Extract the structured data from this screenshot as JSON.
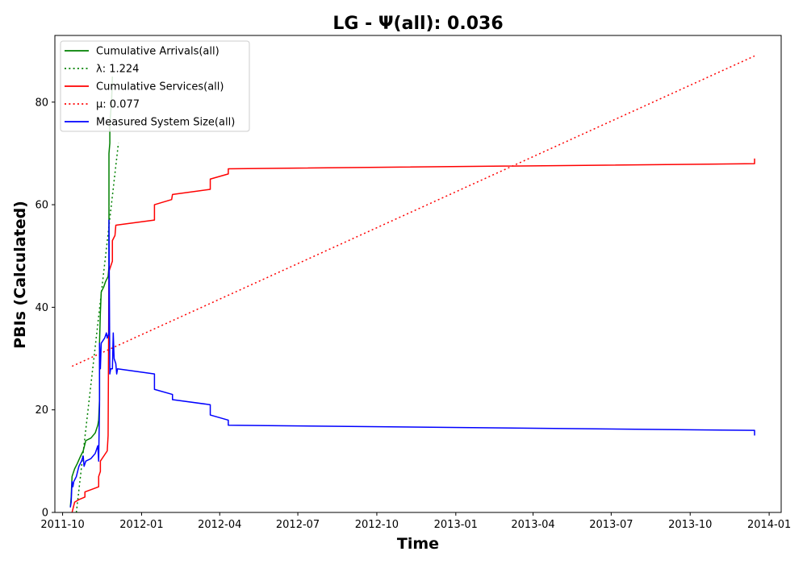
{
  "chart_data": {
    "type": "line",
    "title": "LG -  Ψ(all): 0.036",
    "xlabel": "Time",
    "ylabel": "PBIs (Calculated)",
    "xlim": [
      "2011-09-22",
      "2014-01-15"
    ],
    "ylim": [
      0,
      93
    ],
    "x_ticks": [
      "2011-10",
      "2012-01",
      "2012-04",
      "2012-07",
      "2012-10",
      "2013-01",
      "2013-04",
      "2013-07",
      "2013-10",
      "2014-01"
    ],
    "y_ticks": [
      0,
      20,
      40,
      60,
      80
    ],
    "grid": false,
    "legend_position": "top-left",
    "series": [
      {
        "name": "Cumulative Arrivals(all)",
        "color": "#008000",
        "style": "solid",
        "points": [
          [
            "2011-10-10",
            1
          ],
          [
            "2011-10-11",
            3
          ],
          [
            "2011-10-12",
            7
          ],
          [
            "2011-10-15",
            8.5
          ],
          [
            "2011-10-18",
            9.5
          ],
          [
            "2011-10-22",
            11
          ],
          [
            "2011-10-25",
            12
          ],
          [
            "2011-10-28",
            14
          ],
          [
            "2011-11-03",
            14.5
          ],
          [
            "2011-11-08",
            15.5
          ],
          [
            "2011-11-11",
            17
          ],
          [
            "2011-11-12",
            18
          ],
          [
            "2011-11-13",
            22
          ],
          [
            "2011-11-13",
            33
          ],
          [
            "2011-11-14",
            39
          ],
          [
            "2011-11-15",
            43
          ],
          [
            "2011-11-18",
            44
          ],
          [
            "2011-11-20",
            45
          ],
          [
            "2011-11-23",
            46
          ],
          [
            "2011-11-24",
            48
          ],
          [
            "2011-11-24",
            70
          ],
          [
            "2011-11-25",
            72
          ],
          [
            "2011-11-25",
            76
          ],
          [
            "2011-11-27",
            80
          ],
          [
            "2011-11-28",
            85
          ]
        ]
      },
      {
        "name": "λ: 1.224",
        "color": "#008000",
        "style": "dotted",
        "points": [
          [
            "2011-10-17",
            0
          ],
          [
            "2011-12-05",
            72
          ]
        ]
      },
      {
        "name": "Cumulative Services(all)",
        "color": "#ff0000",
        "style": "solid",
        "points": [
          [
            "2011-10-12",
            0
          ],
          [
            "2011-10-15",
            2
          ],
          [
            "2011-10-20",
            2.5
          ],
          [
            "2011-10-27",
            3
          ],
          [
            "2011-10-27",
            4
          ],
          [
            "2011-11-12",
            5
          ],
          [
            "2011-11-12",
            7
          ],
          [
            "2011-11-14",
            8
          ],
          [
            "2011-11-14",
            10
          ],
          [
            "2011-11-22",
            12
          ],
          [
            "2011-11-23",
            15
          ],
          [
            "2011-11-24",
            47
          ],
          [
            "2011-11-26",
            48
          ],
          [
            "2011-11-28",
            49
          ],
          [
            "2011-11-28",
            53
          ],
          [
            "2011-12-01",
            54
          ],
          [
            "2011-12-02",
            56
          ],
          [
            "2012-01-16",
            57
          ],
          [
            "2012-01-16",
            60
          ],
          [
            "2012-02-05",
            61
          ],
          [
            "2012-02-06",
            62
          ],
          [
            "2012-03-21",
            63
          ],
          [
            "2012-03-21",
            65
          ],
          [
            "2012-04-11",
            66
          ],
          [
            "2012-04-11",
            67
          ],
          [
            "2013-12-15",
            68
          ],
          [
            "2013-12-15",
            69
          ]
        ]
      },
      {
        "name": "μ: 0.077",
        "color": "#ff0000",
        "style": "dotted",
        "points": [
          [
            "2011-10-12",
            28.5
          ],
          [
            "2013-12-15",
            89
          ]
        ]
      },
      {
        "name": "Measured System Size(all)",
        "color": "#0000ff",
        "style": "solid",
        "points": [
          [
            "2011-10-10",
            1
          ],
          [
            "2011-10-11",
            2
          ],
          [
            "2011-10-12",
            6
          ],
          [
            "2011-10-13",
            5
          ],
          [
            "2011-10-14",
            6
          ],
          [
            "2011-10-17",
            7
          ],
          [
            "2011-10-20",
            9
          ],
          [
            "2011-10-23",
            10
          ],
          [
            "2011-10-25",
            11
          ],
          [
            "2011-10-26",
            9
          ],
          [
            "2011-10-28",
            10
          ],
          [
            "2011-11-03",
            10.5
          ],
          [
            "2011-11-08",
            11.5
          ],
          [
            "2011-11-11",
            13
          ],
          [
            "2011-11-12",
            10
          ],
          [
            "2011-11-13",
            21
          ],
          [
            "2011-11-13",
            33
          ],
          [
            "2011-11-14",
            28
          ],
          [
            "2011-11-15",
            33
          ],
          [
            "2011-11-19",
            34
          ],
          [
            "2011-11-21",
            35
          ],
          [
            "2011-11-22",
            34
          ],
          [
            "2011-11-24",
            35
          ],
          [
            "2011-11-24",
            57
          ],
          [
            "2011-11-25",
            27
          ],
          [
            "2011-11-26",
            28
          ],
          [
            "2011-11-28",
            28
          ],
          [
            "2011-11-29",
            35
          ],
          [
            "2011-11-30",
            30
          ],
          [
            "2011-12-02",
            29
          ],
          [
            "2011-12-03",
            27
          ],
          [
            "2011-12-04",
            28
          ],
          [
            "2012-01-16",
            27
          ],
          [
            "2012-01-16",
            24
          ],
          [
            "2012-02-06",
            23
          ],
          [
            "2012-02-06",
            22
          ],
          [
            "2012-03-21",
            21
          ],
          [
            "2012-03-21",
            19
          ],
          [
            "2012-04-11",
            18
          ],
          [
            "2012-04-11",
            17
          ],
          [
            "2013-12-15",
            16
          ],
          [
            "2013-12-15",
            15
          ]
        ]
      }
    ]
  }
}
